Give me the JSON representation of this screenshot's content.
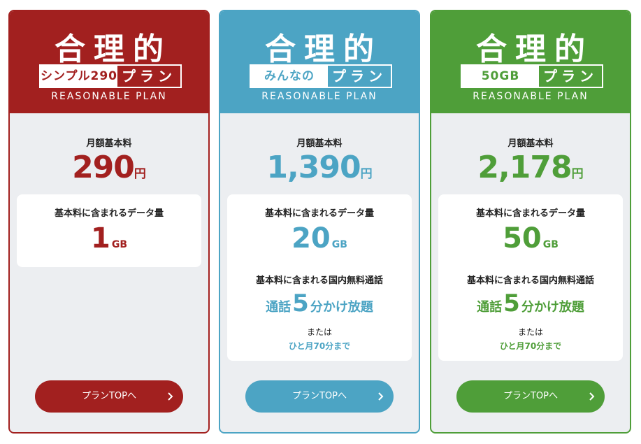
{
  "plans": [
    {
      "logo_title": "合理的",
      "logo_name": "シンプル290",
      "logo_plan": "プラン",
      "logo_en": "REASONABLE PLAN",
      "fee_label": "月額基本料",
      "fee": "290",
      "fee_unit": "円",
      "data_label": "基本料に含まれるデータ量",
      "data_amount": "1",
      "data_unit": "GB",
      "button": "プランTOPへ"
    },
    {
      "logo_title": "合理的",
      "logo_name": "みんなの",
      "logo_plan": "プラン",
      "logo_en": "REASONABLE PLAN",
      "fee_label": "月額基本料",
      "fee": "1,390",
      "fee_unit": "円",
      "data_label": "基本料に含まれるデータ量",
      "data_amount": "20",
      "data_unit": "GB",
      "call_label": "基本料に含まれる国内無料通話",
      "call_prefix": "通話",
      "call_number": "5",
      "call_suffix": "分かけ放題",
      "call_or": "または",
      "call_alt": "ひと月70分まで",
      "button": "プランTOPへ"
    },
    {
      "logo_title": "合理的",
      "logo_name": "50GB",
      "logo_plan": "プラン",
      "logo_en": "REASONABLE PLAN",
      "fee_label": "月額基本料",
      "fee": "2,178",
      "fee_unit": "円",
      "data_label": "基本料に含まれるデータ量",
      "data_amount": "50",
      "data_unit": "GB",
      "call_label": "基本料に含まれる国内無料通話",
      "call_prefix": "通話",
      "call_number": "5",
      "call_suffix": "分かけ放題",
      "call_or": "または",
      "call_alt": "ひと月70分まで",
      "button": "プランTOPへ"
    }
  ]
}
